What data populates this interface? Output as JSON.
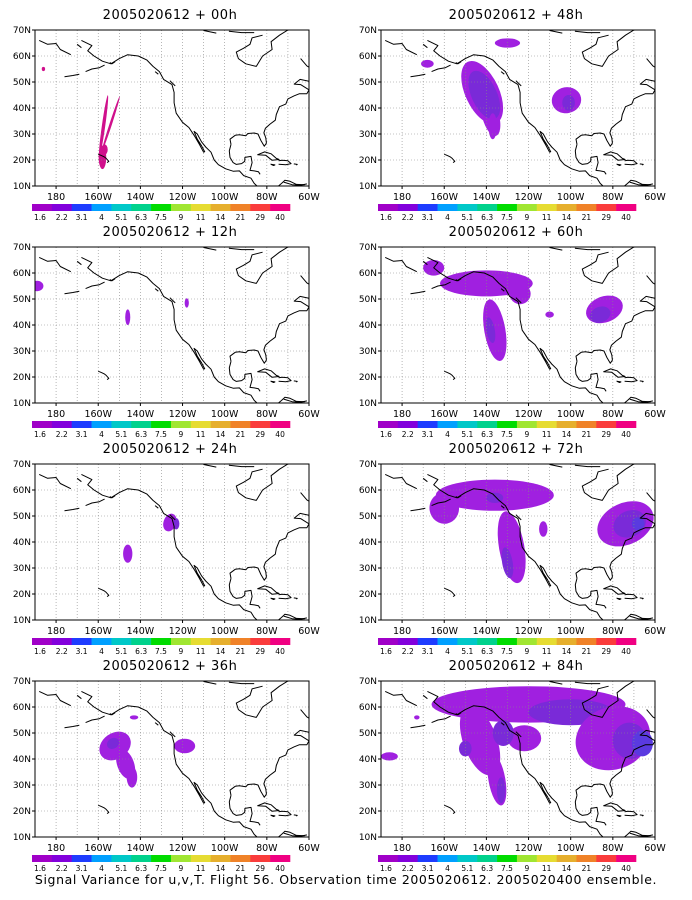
{
  "footer": "Signal Variance for u,v,T. Flight 56. Observation time 2005020612. 2005020400 ensemble.",
  "y_axis_labels": [
    "70N",
    "60N",
    "50N",
    "40N",
    "30N",
    "20N",
    "10N"
  ],
  "x_axis_labels": [
    "180",
    "160W",
    "140W",
    "120W",
    "100W",
    "80W",
    "60W"
  ],
  "colorbar": {
    "labels": [
      "1.6",
      "2.2",
      "3.1",
      "4",
      "5.1",
      "6.3",
      "7.5",
      "9",
      "11",
      "14",
      "21",
      "29",
      "40"
    ],
    "colors": [
      "#a000c8",
      "#8200dc",
      "#1e3cff",
      "#00a0ff",
      "#00c8c8",
      "#00d28c",
      "#00dc00",
      "#a0e632",
      "#e6dc32",
      "#e6af2d",
      "#f08228",
      "#fa3c3c",
      "#f00082"
    ]
  },
  "shading": {
    "light": "#a020e0",
    "mid": "#7a2ad8",
    "deep": "#5a3ae0",
    "magenta": "#d0108c"
  },
  "panels": [
    {
      "title": "2005020612 + 00h",
      "hour": "00h"
    },
    {
      "title": "2005020612 + 48h",
      "hour": "48h"
    },
    {
      "title": "2005020612 + 12h",
      "hour": "12h"
    },
    {
      "title": "2005020612 + 60h",
      "hour": "60h"
    },
    {
      "title": "2005020612 + 24h",
      "hour": "24h"
    },
    {
      "title": "2005020612 + 72h",
      "hour": "72h"
    },
    {
      "title": "2005020612 + 36h",
      "hour": "36h"
    },
    {
      "title": "2005020612 + 84h",
      "hour": "84h"
    }
  ]
}
